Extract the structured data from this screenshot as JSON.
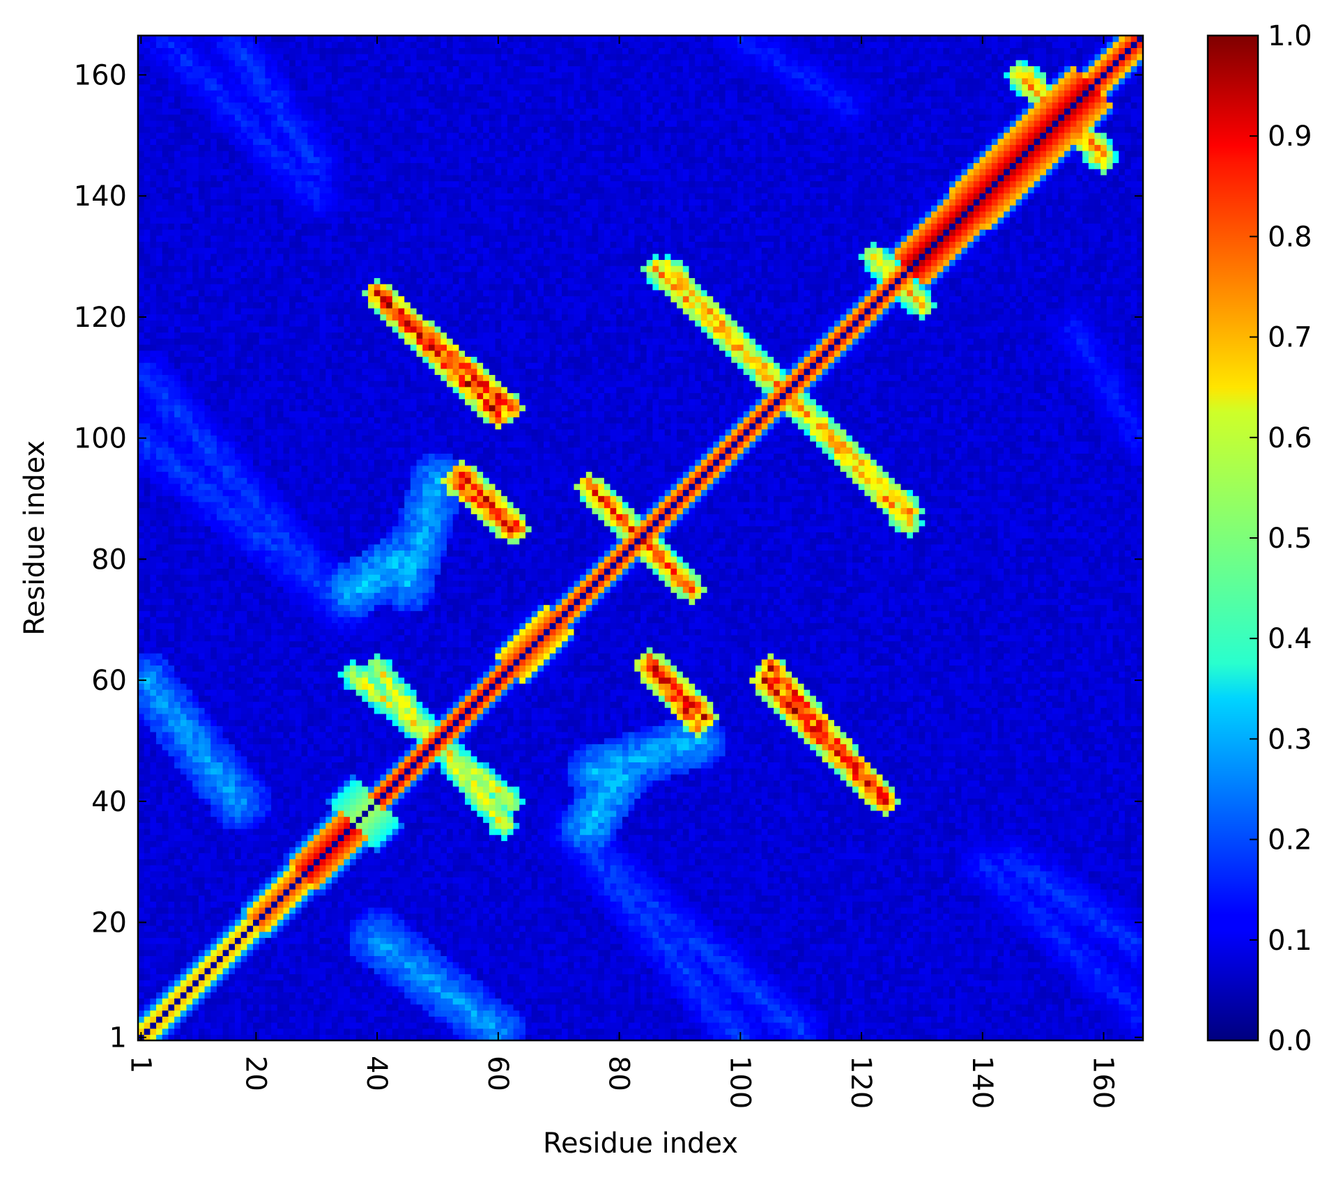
{
  "chart_data": {
    "type": "heatmap",
    "title": "",
    "xlabel": "Residue index",
    "ylabel": "Residue index",
    "n_residues": 166,
    "xlim": [
      1,
      166
    ],
    "ylim": [
      1,
      166
    ],
    "x_ticks": [
      1,
      20,
      40,
      60,
      80,
      100,
      120,
      140,
      160
    ],
    "y_ticks": [
      1,
      20,
      40,
      60,
      80,
      100,
      120,
      140,
      160
    ],
    "x_tick_labels": [
      "1",
      "20",
      "40",
      "60",
      "80",
      "100",
      "120",
      "140",
      "160"
    ],
    "y_tick_labels": [
      "1",
      "20",
      "40",
      "60",
      "80",
      "100",
      "120",
      "140",
      "160"
    ],
    "colormap": "jet",
    "colorbar": {
      "range": [
        0.0,
        1.0
      ],
      "ticks": [
        0.0,
        0.1,
        0.2,
        0.3,
        0.4,
        0.5,
        0.6,
        0.7,
        0.8,
        0.9,
        1.0
      ],
      "tick_labels": [
        "0.0",
        "0.1",
        "0.2",
        "0.3",
        "0.4",
        "0.5",
        "0.6",
        "0.7",
        "0.8",
        "0.9",
        "1.0"
      ]
    },
    "background_value": 0.06,
    "diagonal_value": 0.02,
    "diagonal_features": [
      {
        "from": 1,
        "to": 20,
        "value": 0.75,
        "width": 2.5
      },
      {
        "from": 20,
        "to": 28,
        "value": 0.85,
        "width": 3.5
      },
      {
        "from": 28,
        "to": 36,
        "value": 0.95,
        "width": 4.5
      },
      {
        "from": 36,
        "to": 40,
        "value": 0.55,
        "width": 7.0
      },
      {
        "from": 40,
        "to": 62,
        "value": 0.95,
        "width": 2.0
      },
      {
        "from": 62,
        "to": 70,
        "value": 0.88,
        "width": 4.0
      },
      {
        "from": 70,
        "to": 128,
        "value": 0.92,
        "width": 2.0
      },
      {
        "from": 128,
        "to": 138,
        "value": 1.0,
        "width": 5.0
      },
      {
        "from": 138,
        "to": 158,
        "value": 0.98,
        "width": 6.0
      },
      {
        "from": 158,
        "to": 166,
        "value": 0.92,
        "width": 3.0
      }
    ],
    "contact_segments": [
      {
        "x1": 40,
        "y1": 124,
        "x2": 60,
        "y2": 104,
        "value": 0.88
      },
      {
        "x1": 88,
        "y1": 128,
        "x2": 128,
        "y2": 86,
        "value": 0.72
      },
      {
        "x1": 53,
        "y1": 93,
        "x2": 62,
        "y2": 85,
        "value": 0.85
      },
      {
        "x1": 75,
        "y1": 92,
        "x2": 92,
        "y2": 75,
        "value": 0.82
      },
      {
        "x1": 85,
        "y1": 63,
        "x2": 94,
        "y2": 54,
        "value": 0.88
      },
      {
        "x1": 105,
        "y1": 62,
        "x2": 124,
        "y2": 40,
        "value": 0.88
      },
      {
        "x1": 40,
        "y1": 62,
        "x2": 61,
        "y2": 36,
        "value": 0.62
      },
      {
        "x1": 36,
        "y1": 75,
        "x2": 44,
        "y2": 80,
        "value": 0.32
      },
      {
        "x1": 76,
        "y1": 45,
        "x2": 93,
        "y2": 50,
        "value": 0.3
      },
      {
        "x1": 146,
        "y1": 160,
        "x2": 160,
        "y2": 147,
        "value": 0.72
      },
      {
        "x1": 122,
        "y1": 130,
        "x2": 130,
        "y2": 122,
        "value": 0.7
      },
      {
        "x1": 40,
        "y1": 17,
        "x2": 60,
        "y2": 2,
        "value": 0.28
      },
      {
        "x1": 2,
        "y1": 60,
        "x2": 18,
        "y2": 40,
        "value": 0.25
      },
      {
        "x1": 1,
        "y1": 100,
        "x2": 35,
        "y2": 72,
        "value": 0.18
      },
      {
        "x1": 75,
        "y1": 32,
        "x2": 110,
        "y2": 2,
        "value": 0.18
      },
      {
        "x1": 140,
        "y1": 30,
        "x2": 166,
        "y2": 5,
        "value": 0.16
      },
      {
        "x1": 16,
        "y1": 166,
        "x2": 30,
        "y2": 145,
        "value": 0.17
      },
      {
        "x1": 155,
        "y1": 118,
        "x2": 166,
        "y2": 100,
        "value": 0.15
      }
    ]
  }
}
